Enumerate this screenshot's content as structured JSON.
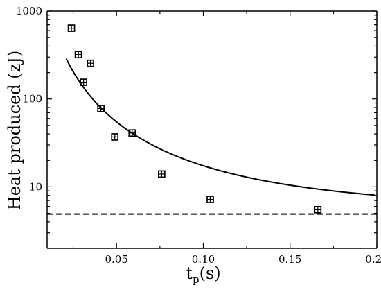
{
  "chart_data": {
    "type": "scatter",
    "x_axis": {
      "label_main": "t",
      "label_subscript": "p",
      "label_unit": "(s)",
      "range": [
        0.01,
        0.2
      ],
      "ticks": [
        0.05,
        0.1,
        0.15,
        0.2
      ],
      "tick_labels": [
        "0.05",
        "0.10",
        "0.15",
        "0.20"
      ]
    },
    "y_axis": {
      "label": "Heat produced (zJ)",
      "scale": "log",
      "range": [
        2,
        1000
      ],
      "ticks": [
        10,
        100,
        1000
      ],
      "tick_labels": [
        "10",
        "100",
        "1000"
      ]
    },
    "series": [
      {
        "type": "scatter",
        "marker": "square-with-cross",
        "x": [
          0.024,
          0.028,
          0.031,
          0.035,
          0.041,
          0.049,
          0.059,
          0.076,
          0.104,
          0.166
        ],
        "y": [
          640,
          320,
          155,
          255,
          78,
          37,
          41,
          14,
          7.2,
          5.5
        ]
      },
      {
        "type": "line",
        "style": "solid",
        "model": "y = 4.9 + 0.125 / x^2"
      },
      {
        "type": "line",
        "style": "dashed",
        "y": 4.9
      }
    ],
    "grid": false,
    "legend": "none"
  }
}
